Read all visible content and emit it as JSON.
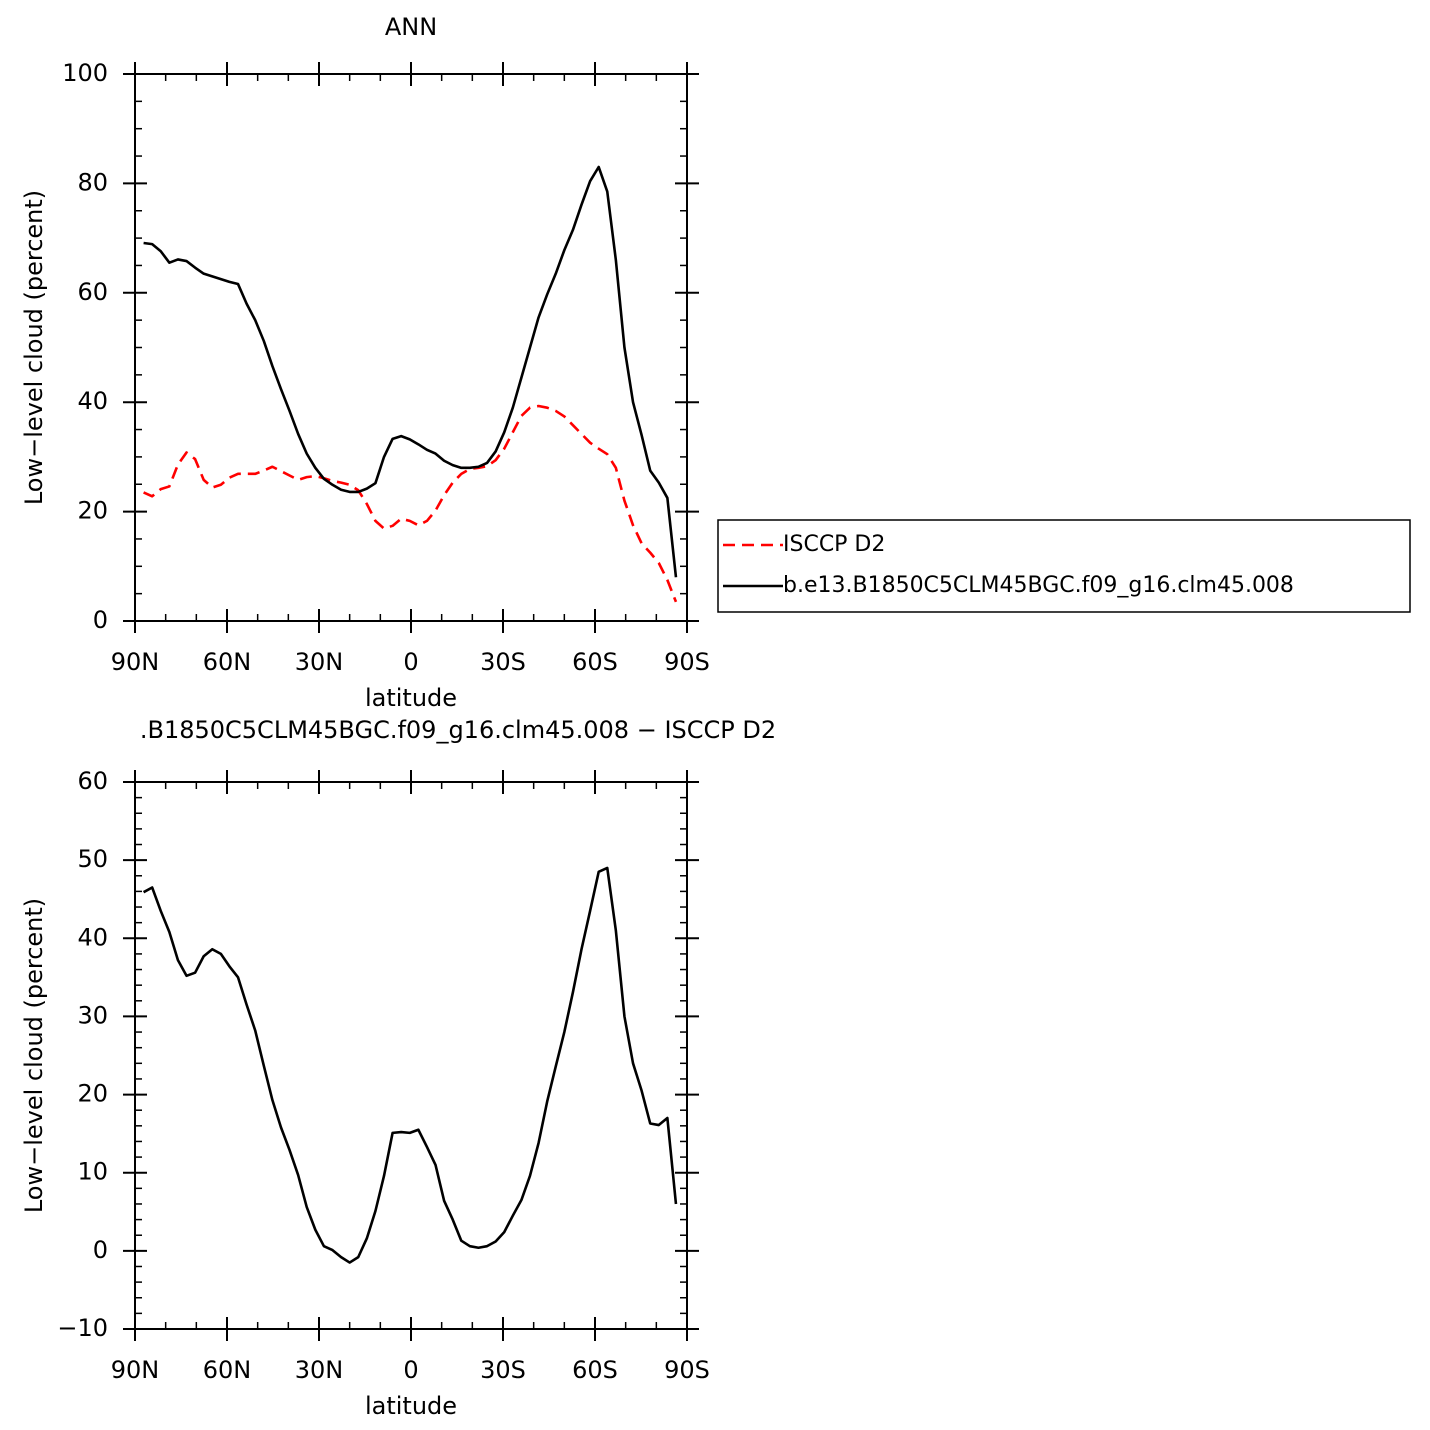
{
  "chart_data": [
    {
      "type": "line",
      "title": "ANN",
      "xlabel": "latitude",
      "ylabel": "Low−level cloud (percent)",
      "x": [
        87.2,
        84.4,
        81.6,
        78.8,
        76,
        73.2,
        70.4,
        67.6,
        64.8,
        62,
        59.2,
        56.4,
        53.6,
        50.8,
        48,
        45.2,
        42.4,
        39.6,
        36.8,
        34,
        31.2,
        28.4,
        25.6,
        22.8,
        20,
        17.2,
        14.4,
        11.6,
        8.8,
        6,
        3.2,
        0.4,
        -2.4,
        -5.2,
        -8,
        -10.8,
        -13.6,
        -16.4,
        -19.2,
        -22,
        -24.8,
        -27.6,
        -30.4,
        -33.2,
        -36,
        -38.8,
        -41.6,
        -44.4,
        -47.2,
        -50,
        -52.8,
        -55.6,
        -58.4,
        -61.2,
        -64,
        -66.8,
        -69.6,
        -72.4,
        -75.2,
        -78,
        -80.8,
        -83.6,
        -86.4
      ],
      "xlim": [
        90,
        -90
      ],
      "xticks": [
        {
          "value": 90,
          "label": "90N"
        },
        {
          "value": 60,
          "label": "60N"
        },
        {
          "value": 30,
          "label": "30N"
        },
        0,
        {
          "value": -30,
          "label": "30S"
        },
        {
          "value": -60,
          "label": "60S"
        },
        {
          "value": -90,
          "label": "90S"
        }
      ],
      "xminorticks": [
        80,
        70,
        50,
        40,
        20,
        10,
        -10,
        -20,
        -40,
        -50,
        -70,
        -80
      ],
      "ylim": [
        0,
        100
      ],
      "yticks": [
        0,
        20,
        40,
        60,
        80,
        100
      ],
      "yminorticks": [
        5,
        10,
        15,
        25,
        30,
        35,
        45,
        50,
        55,
        65,
        70,
        75,
        85,
        90,
        95
      ],
      "legend": "right",
      "series": [
        {
          "name": "ISCCP D2",
          "color": "#ff0000",
          "dash": true,
          "values": [
            23.5,
            22.8,
            24.1,
            24.6,
            28.6,
            30.8,
            29.6,
            25.8,
            24.4,
            24.9,
            26.2,
            26.9,
            26.9,
            26.9,
            27.5,
            28.2,
            27.4,
            26.6,
            25.8,
            26.3,
            26.5,
            26.1,
            25.6,
            25.3,
            24.9,
            23.9,
            21.4,
            18.3,
            16.9,
            17.4,
            18.7,
            18.3,
            17.5,
            18.3,
            20.2,
            23,
            25.3,
            26.9,
            27.8,
            28,
            28.3,
            29.4,
            31.5,
            34.5,
            37.5,
            39,
            39.3,
            39,
            38.4,
            37.4,
            35.8,
            34.2,
            32.6,
            31.5,
            30.5,
            28,
            22,
            17.5,
            14.2,
            12.5,
            10.6,
            7.5,
            3.5
          ]
        },
        {
          "name": "b.e13.B1850C5CLM45BGC.f09_g16.clm45.008",
          "color": "#000000",
          "dash": false,
          "values": [
            69.1,
            68.9,
            67.6,
            65.5,
            66.1,
            65.8,
            64.6,
            63.5,
            63,
            62.5,
            62,
            61.6,
            58,
            55,
            51.2,
            46.6,
            42.4,
            38.4,
            34.2,
            30.6,
            28,
            26,
            24.9,
            24,
            23.6,
            23.6,
            24.2,
            25.2,
            30,
            33.3,
            33.8,
            33.2,
            32.3,
            31.3,
            30.6,
            29.3,
            28.5,
            28,
            28,
            28.2,
            28.9,
            31,
            34.5,
            39,
            44.5,
            50,
            55.5,
            59.7,
            63.5,
            67.8,
            71.5,
            76.1,
            80.4,
            83,
            78.5,
            66,
            50,
            40,
            34,
            27.5,
            25.3,
            22.5,
            8
          ]
        }
      ]
    },
    {
      "type": "line",
      "title": ".B1850C5CLM45BGC.f09_g16.clm45.008 − ISCCP D2",
      "xlabel": "latitude",
      "ylabel": "Low−level cloud (percent)",
      "x": [
        87.2,
        84.4,
        81.6,
        78.8,
        76,
        73.2,
        70.4,
        67.6,
        64.8,
        62,
        59.2,
        56.4,
        53.6,
        50.8,
        48,
        45.2,
        42.4,
        39.6,
        36.8,
        34,
        31.2,
        28.4,
        25.6,
        22.8,
        20,
        17.2,
        14.4,
        11.6,
        8.8,
        6,
        3.2,
        0.4,
        -2.4,
        -5.2,
        -8,
        -10.8,
        -13.6,
        -16.4,
        -19.2,
        -22,
        -24.8,
        -27.6,
        -30.4,
        -33.2,
        -36,
        -38.8,
        -41.6,
        -44.4,
        -47.2,
        -50,
        -52.8,
        -55.6,
        -58.4,
        -61.2,
        -64,
        -66.8,
        -69.6,
        -72.4,
        -75.2,
        -78,
        -80.8,
        -83.6,
        -86.4
      ],
      "xlim": [
        90,
        -90
      ],
      "xticks": [
        {
          "value": 90,
          "label": "90N"
        },
        {
          "value": 60,
          "label": "60N"
        },
        {
          "value": 30,
          "label": "30N"
        },
        0,
        {
          "value": -30,
          "label": "30S"
        },
        {
          "value": -60,
          "label": "60S"
        },
        {
          "value": -90,
          "label": "90S"
        }
      ],
      "xminorticks": [
        80,
        70,
        50,
        40,
        20,
        10,
        -10,
        -20,
        -40,
        -50,
        -70,
        -80
      ],
      "ylim": [
        -10,
        60
      ],
      "yticks": [
        {
          "value": -10,
          "label": "−10"
        },
        0,
        10,
        20,
        30,
        40,
        50,
        60
      ],
      "yminorticks": [
        -8,
        -6,
        -4,
        -2,
        2,
        4,
        6,
        8,
        12,
        14,
        16,
        18,
        22,
        24,
        26,
        28,
        32,
        34,
        36,
        38,
        42,
        44,
        46,
        48,
        52,
        54,
        56,
        58
      ],
      "color": "#000000",
      "values": [
        45.9,
        46.5,
        43.5,
        40.8,
        37.2,
        35.2,
        35.6,
        37.7,
        38.6,
        38,
        36.4,
        35,
        31.5,
        28.2,
        23.7,
        19.3,
        15.8,
        12.9,
        9.7,
        5.6,
        2.7,
        0.6,
        0.1,
        -0.8,
        -1.5,
        -0.8,
        1.6,
        5.1,
        9.6,
        15.1,
        15.2,
        15.1,
        15.5,
        13.3,
        11,
        6.4,
        4,
        1.3,
        0.6,
        0.4,
        0.6,
        1.2,
        2.4,
        4.5,
        6.5,
        9.6,
        13.8,
        19.1,
        23.6,
        28,
        33.1,
        38.6,
        43.5,
        48.5,
        49,
        41,
        30,
        24,
        20.5,
        16.3,
        16.1,
        17,
        6
      ]
    }
  ]
}
